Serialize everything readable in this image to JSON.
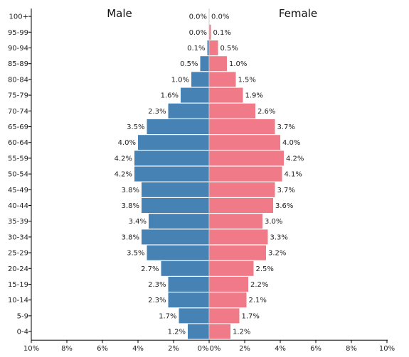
{
  "chart_data": {
    "type": "bar",
    "orientation": "horizontal-pyramid",
    "male_title": "Male",
    "female_title": "Female",
    "categories": [
      "0-4",
      "5-9",
      "10-14",
      "15-19",
      "20-24",
      "25-29",
      "30-34",
      "35-39",
      "40-44",
      "45-49",
      "50-54",
      "55-59",
      "60-64",
      "65-69",
      "70-74",
      "75-79",
      "80-84",
      "85-89",
      "90-94",
      "95-99",
      "100+"
    ],
    "series": [
      {
        "name": "Male",
        "color": "#4682b4",
        "values": [
          1.2,
          1.7,
          2.3,
          2.3,
          2.7,
          3.5,
          3.8,
          3.4,
          3.8,
          3.8,
          4.2,
          4.2,
          4.0,
          3.5,
          2.3,
          1.6,
          1.0,
          0.5,
          0.1,
          0.0,
          0.0
        ],
        "labels": [
          "1.2%",
          "1.7%",
          "2.3%",
          "2.3%",
          "2.7%",
          "3.5%",
          "3.8%",
          "3.4%",
          "3.8%",
          "3.8%",
          "4.2%",
          "4.2%",
          "4.0%",
          "3.5%",
          "2.3%",
          "1.6%",
          "1.0%",
          "0.5%",
          "0.1%",
          "0.0%",
          "0.0%"
        ]
      },
      {
        "name": "Female",
        "color": "#f07a87",
        "values": [
          1.2,
          1.7,
          2.1,
          2.2,
          2.5,
          3.2,
          3.3,
          3.0,
          3.6,
          3.7,
          4.1,
          4.2,
          4.0,
          3.7,
          2.6,
          1.9,
          1.5,
          1.0,
          0.5,
          0.1,
          0.0
        ],
        "labels": [
          "1.2%",
          "1.7%",
          "2.1%",
          "2.2%",
          "2.5%",
          "3.2%",
          "3.3%",
          "3.0%",
          "3.6%",
          "3.7%",
          "4.1%",
          "4.2%",
          "4.0%",
          "3.7%",
          "2.6%",
          "1.9%",
          "1.5%",
          "1.0%",
          "0.5%",
          "0.1%",
          "0.0%"
        ]
      }
    ],
    "x_ticks_left": [
      "10%",
      "8%",
      "6%",
      "4%",
      "2%",
      "0%"
    ],
    "x_ticks_right": [
      "0%",
      "2%",
      "4%",
      "6%",
      "8%",
      "10%"
    ],
    "xlim": [
      0,
      10
    ]
  }
}
